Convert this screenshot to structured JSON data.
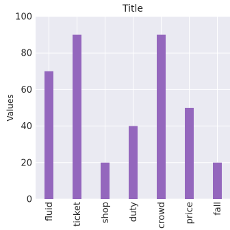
{
  "chart_data": {
    "type": "bar",
    "title": "Title",
    "xlabel": "",
    "ylabel": "Values",
    "categories": [
      "fluid",
      "ticket",
      "shop",
      "duty",
      "crowd",
      "price",
      "fall"
    ],
    "values": [
      70,
      90,
      20,
      40,
      90,
      50,
      20
    ],
    "ylim": [
      0,
      100
    ],
    "yticks": [
      0,
      20,
      40,
      60,
      80,
      100
    ],
    "grid": true,
    "bar_color": "#9467bd",
    "plot_background": "#eaeaf2",
    "grid_color": "#ffffff"
  }
}
